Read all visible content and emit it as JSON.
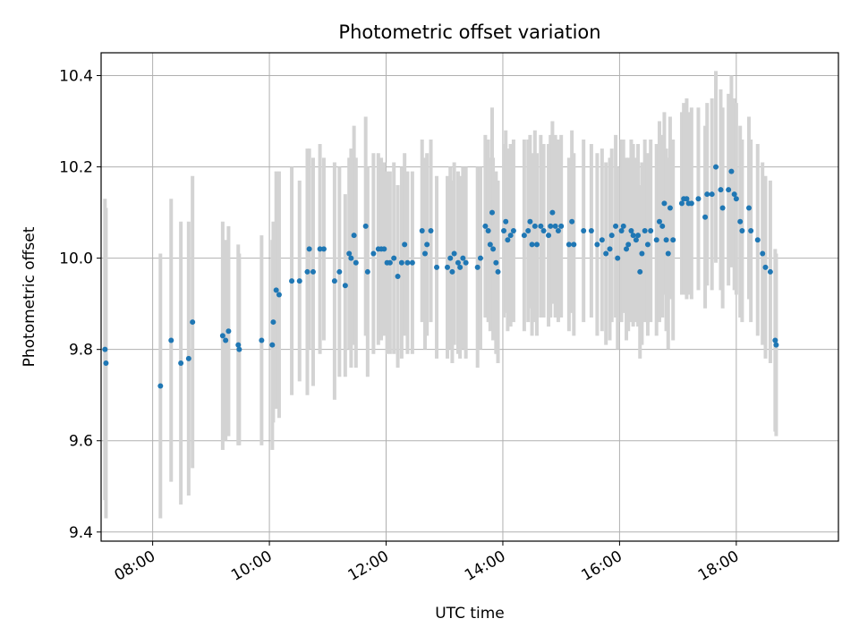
{
  "chart_data": {
    "type": "scatter",
    "title": "Photometric offset variation",
    "xlabel": "UTC time",
    "ylabel": "Photometric offset",
    "x_ticks": [
      "08:00",
      "10:00",
      "12:00",
      "14:00",
      "16:00",
      "18:00"
    ],
    "y_ticks": [
      "9.4",
      "9.6",
      "9.8",
      "10.0",
      "10.2",
      "10.4"
    ],
    "xlim": [
      "07:07",
      "19:45"
    ],
    "ylim": [
      9.38,
      10.45
    ],
    "grid": true,
    "colors": {
      "points": "#1f77b4",
      "errorbars": "#d3d3d3",
      "grid": "#b0b0b0"
    },
    "series": [
      {
        "points": [
          [
            "07:11",
            9.8,
            0.33
          ],
          [
            "07:12",
            9.77,
            0.34
          ],
          [
            "08:08",
            9.72,
            0.29
          ],
          [
            "08:19",
            9.82,
            0.31
          ],
          [
            "08:29",
            9.77,
            0.31
          ],
          [
            "08:37",
            9.78,
            0.3
          ],
          [
            "08:41",
            9.86,
            0.32
          ],
          [
            "09:12",
            9.83,
            0.25
          ],
          [
            "09:15",
            9.82,
            0.22
          ],
          [
            "09:18",
            9.84,
            0.23
          ],
          [
            "09:28",
            9.81,
            0.22
          ],
          [
            "09:29",
            9.8,
            0.21
          ],
          [
            "09:52",
            9.82,
            0.23
          ],
          [
            "10:03",
            9.81,
            0.23
          ],
          [
            "10:04",
            9.86,
            0.22
          ],
          [
            "10:07",
            9.93,
            0.26
          ],
          [
            "10:10",
            9.92,
            0.27
          ],
          [
            "10:23",
            9.95,
            0.25
          ],
          [
            "10:31",
            9.95,
            0.22
          ],
          [
            "10:39",
            9.97,
            0.27
          ],
          [
            "10:41",
            10.02,
            0.22
          ],
          [
            "10:45",
            9.97,
            0.25
          ],
          [
            "10:52",
            10.02,
            0.23
          ],
          [
            "10:56",
            10.02,
            0.2
          ],
          [
            "11:07",
            9.95,
            0.26
          ],
          [
            "11:12",
            9.97,
            0.23
          ],
          [
            "11:18",
            9.94,
            0.2
          ],
          [
            "11:22",
            10.01,
            0.21
          ],
          [
            "11:24",
            10.0,
            0.24
          ],
          [
            "11:27",
            10.05,
            0.24
          ],
          [
            "11:29",
            9.99,
            0.23
          ],
          [
            "11:39",
            10.07,
            0.24
          ],
          [
            "11:41",
            9.97,
            0.23
          ],
          [
            "11:47",
            10.01,
            0.22
          ],
          [
            "11:52",
            10.02,
            0.21
          ],
          [
            "11:55",
            10.02,
            0.2
          ],
          [
            "11:58",
            10.02,
            0.19
          ],
          [
            "12:01",
            9.99,
            0.2
          ],
          [
            "12:04",
            9.99,
            0.2
          ],
          [
            "12:08",
            10.0,
            0.21
          ],
          [
            "12:12",
            9.96,
            0.2
          ],
          [
            "12:16",
            9.99,
            0.21
          ],
          [
            "12:19",
            10.03,
            0.2
          ],
          [
            "12:22",
            9.99,
            0.2
          ],
          [
            "12:27",
            9.99,
            0.2
          ],
          [
            "12:37",
            10.06,
            0.2
          ],
          [
            "12:40",
            10.01,
            0.21
          ],
          [
            "12:42",
            10.03,
            0.2
          ],
          [
            "12:46",
            10.06,
            0.2
          ],
          [
            "12:52",
            9.98,
            0.2
          ],
          [
            "13:03",
            9.98,
            0.2
          ],
          [
            "13:06",
            10.0,
            0.2
          ],
          [
            "13:08",
            9.97,
            0.2
          ],
          [
            "13:10",
            10.01,
            0.2
          ],
          [
            "13:14",
            9.99,
            0.2
          ],
          [
            "13:16",
            9.98,
            0.2
          ],
          [
            "13:19",
            10.0,
            0.2
          ],
          [
            "13:22",
            9.99,
            0.21
          ],
          [
            "13:34",
            9.98,
            0.22
          ],
          [
            "13:37",
            10.0,
            0.2
          ],
          [
            "13:42",
            10.07,
            0.2
          ],
          [
            "13:45",
            10.06,
            0.2
          ],
          [
            "13:47",
            10.03,
            0.19
          ],
          [
            "13:49",
            10.1,
            0.23
          ],
          [
            "13:50",
            10.02,
            0.2
          ],
          [
            "13:53",
            9.99,
            0.2
          ],
          [
            "13:55",
            9.97,
            0.2
          ],
          [
            "14:01",
            10.06,
            0.19
          ],
          [
            "14:03",
            10.08,
            0.2
          ],
          [
            "14:05",
            10.04,
            0.2
          ],
          [
            "14:08",
            10.05,
            0.2
          ],
          [
            "14:11",
            10.06,
            0.2
          ],
          [
            "14:22",
            10.05,
            0.21
          ],
          [
            "14:26",
            10.06,
            0.2
          ],
          [
            "14:28",
            10.08,
            0.19
          ],
          [
            "14:30",
            10.03,
            0.2
          ],
          [
            "14:33",
            10.07,
            0.21
          ],
          [
            "14:35",
            10.03,
            0.2
          ],
          [
            "14:39",
            10.07,
            0.2
          ],
          [
            "14:42",
            10.06,
            0.19
          ],
          [
            "14:47",
            10.05,
            0.2
          ],
          [
            "14:49",
            10.07,
            0.2
          ],
          [
            "14:51",
            10.1,
            0.2
          ],
          [
            "14:54",
            10.07,
            0.2
          ],
          [
            "14:57",
            10.06,
            0.2
          ],
          [
            "15:00",
            10.07,
            0.2
          ],
          [
            "15:08",
            10.03,
            0.19
          ],
          [
            "15:11",
            10.08,
            0.2
          ],
          [
            "15:13",
            10.03,
            0.2
          ],
          [
            "15:23",
            10.06,
            0.2
          ],
          [
            "15:31",
            10.06,
            0.19
          ],
          [
            "15:37",
            10.03,
            0.2
          ],
          [
            "15:42",
            10.04,
            0.2
          ],
          [
            "15:46",
            10.01,
            0.2
          ],
          [
            "15:50",
            10.02,
            0.2
          ],
          [
            "15:52",
            10.05,
            0.19
          ],
          [
            "15:56",
            10.07,
            0.2
          ],
          [
            "15:58",
            10.0,
            0.2
          ],
          [
            "16:02",
            10.06,
            0.2
          ],
          [
            "16:04",
            10.07,
            0.19
          ],
          [
            "16:07",
            10.02,
            0.2
          ],
          [
            "16:09",
            10.03,
            0.19
          ],
          [
            "16:12",
            10.06,
            0.2
          ],
          [
            "16:14",
            10.05,
            0.2
          ],
          [
            "16:17",
            10.04,
            0.18
          ],
          [
            "16:19",
            10.05,
            0.2
          ],
          [
            "16:21",
            9.97,
            0.19
          ],
          [
            "16:23",
            10.01,
            0.2
          ],
          [
            "16:26",
            10.06,
            0.2
          ],
          [
            "16:29",
            10.03,
            0.2
          ],
          [
            "16:32",
            10.06,
            0.2
          ],
          [
            "16:38",
            10.04,
            0.21
          ],
          [
            "16:41",
            10.08,
            0.22
          ],
          [
            "16:44",
            10.07,
            0.2
          ],
          [
            "16:46",
            10.12,
            0.2
          ],
          [
            "16:48",
            10.04,
            0.2
          ],
          [
            "16:50",
            10.01,
            0.21
          ],
          [
            "16:52",
            10.11,
            0.2
          ],
          [
            "16:55",
            10.04,
            0.22
          ],
          [
            "17:04",
            10.12,
            0.2
          ],
          [
            "17:06",
            10.13,
            0.21
          ],
          [
            "17:09",
            10.13,
            0.22
          ],
          [
            "17:11",
            10.12,
            0.2
          ],
          [
            "17:14",
            10.12,
            0.21
          ],
          [
            "17:21",
            10.13,
            0.2
          ],
          [
            "17:28",
            10.09,
            0.2
          ],
          [
            "17:30",
            10.14,
            0.2
          ],
          [
            "17:35",
            10.14,
            0.21
          ],
          [
            "17:39",
            10.2,
            0.21
          ],
          [
            "17:44",
            10.15,
            0.22
          ],
          [
            "17:46",
            10.11,
            0.22
          ],
          [
            "17:52",
            10.15,
            0.21
          ],
          [
            "17:55",
            10.19,
            0.21
          ],
          [
            "17:58",
            10.14,
            0.21
          ],
          [
            "18:00",
            10.13,
            0.21
          ],
          [
            "18:04",
            10.08,
            0.21
          ],
          [
            "18:06",
            10.06,
            0.2
          ],
          [
            "18:13",
            10.11,
            0.2
          ],
          [
            "18:15",
            10.06,
            0.2
          ],
          [
            "18:22",
            10.04,
            0.21
          ],
          [
            "18:27",
            10.01,
            0.2
          ],
          [
            "18:30",
            9.98,
            0.2
          ],
          [
            "18:35",
            9.97,
            0.2
          ],
          [
            "18:40",
            9.82,
            0.2
          ],
          [
            "18:41",
            9.81,
            0.2
          ]
        ]
      }
    ]
  }
}
